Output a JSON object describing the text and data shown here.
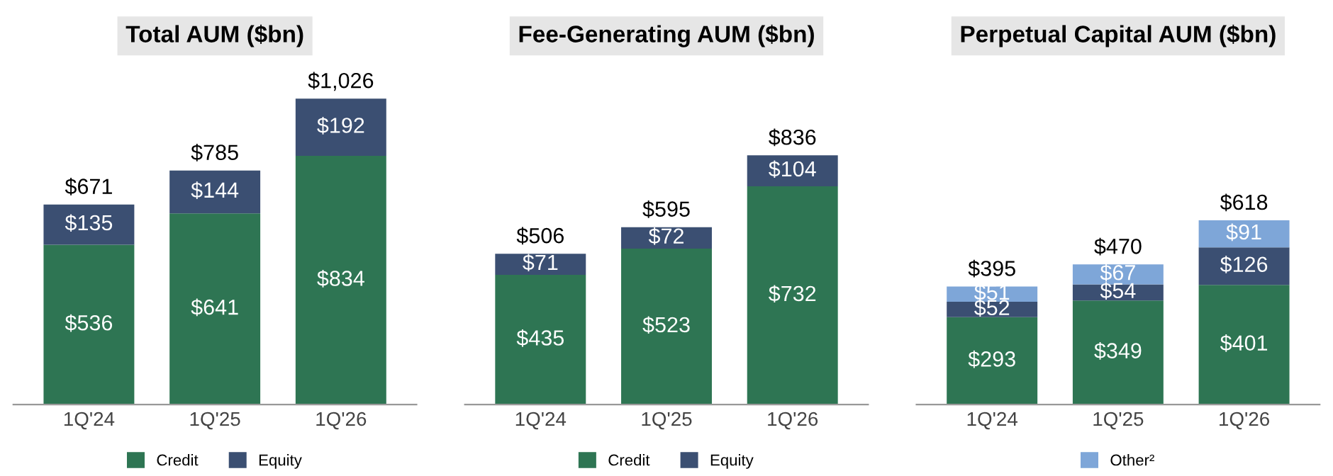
{
  "chart_data": [
    {
      "type": "bar",
      "title": "Total AUM ($bn)",
      "categories": [
        "1Q'24",
        "1Q'25",
        "1Q'26"
      ],
      "stacked": true,
      "legend": "bottom",
      "series": [
        {
          "name": "Credit",
          "color": "#2e7553",
          "values": [
            536,
            641,
            834
          ],
          "value_labels": [
            "$536",
            "$641",
            "$834"
          ]
        },
        {
          "name": "Equity",
          "color": "#3b4f72",
          "values": [
            135,
            144,
            192
          ],
          "value_labels": [
            "$135",
            "$144",
            "$192"
          ]
        }
      ],
      "totals": [
        "$671",
        "$785",
        "$1,026"
      ]
    },
    {
      "type": "bar",
      "title": "Fee-Generating AUM ($bn)",
      "categories": [
        "1Q'24",
        "1Q'25",
        "1Q'26"
      ],
      "stacked": true,
      "legend": "bottom",
      "series": [
        {
          "name": "Credit",
          "color": "#2e7553",
          "values": [
            435,
            523,
            732
          ],
          "value_labels": [
            "$435",
            "$523",
            "$732"
          ]
        },
        {
          "name": "Equity",
          "color": "#3b4f72",
          "values": [
            71,
            72,
            104
          ],
          "value_labels": [
            "$71",
            "$72",
            "$104"
          ]
        }
      ],
      "totals": [
        "$506",
        "$595",
        "$836"
      ]
    },
    {
      "type": "bar",
      "title": "Perpetual Capital AUM ($bn)",
      "categories": [
        "1Q'24",
        "1Q'25",
        "1Q'26"
      ],
      "stacked": true,
      "legend": "bottom",
      "series": [
        {
          "color": "#2e7553",
          "values": [
            293,
            349,
            401
          ],
          "value_labels": [
            "$293",
            "$349",
            "$401"
          ]
        },
        {
          "color": "#3b4f72",
          "values": [
            52,
            54,
            126
          ],
          "value_labels": [
            "$52",
            "$54",
            "$126"
          ]
        },
        {
          "name": "Other²",
          "color": "#7ea6d8",
          "values": [
            51,
            67,
            91
          ],
          "value_labels": [
            "$51",
            "$67",
            "$91"
          ]
        }
      ],
      "totals": [
        "$395",
        "$470",
        "$618"
      ]
    }
  ]
}
